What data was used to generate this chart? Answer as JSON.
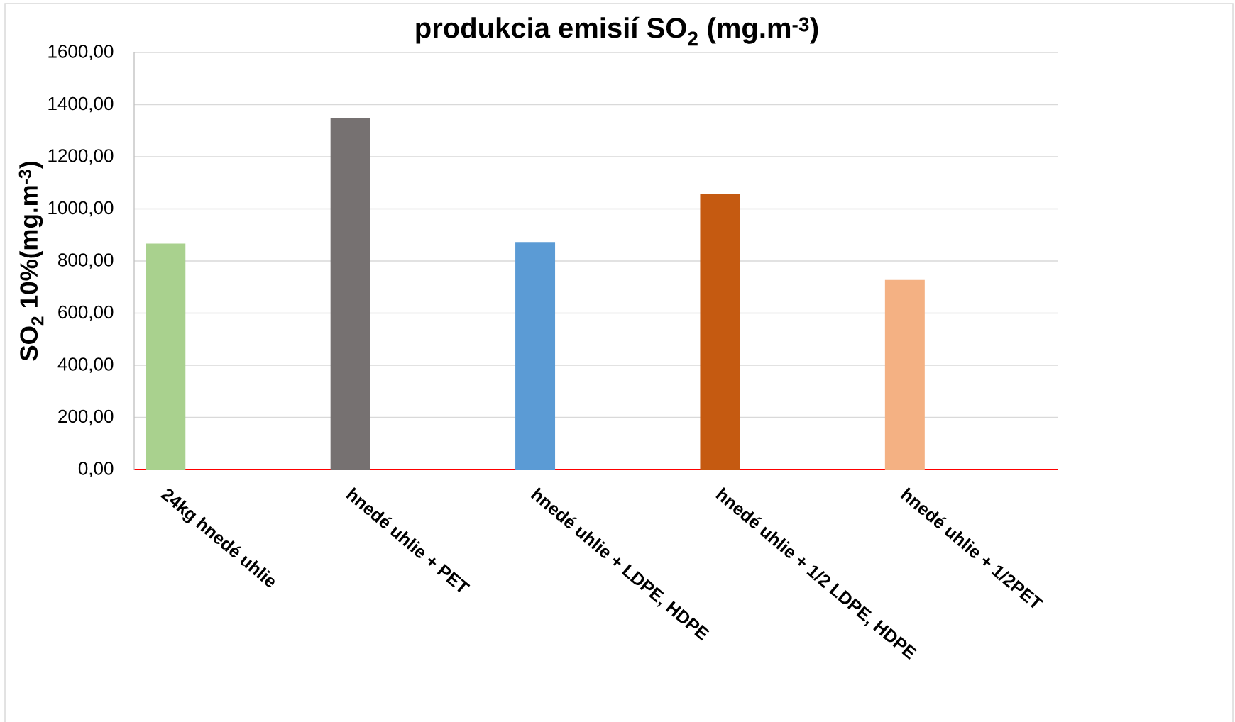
{
  "chart_data": {
    "type": "bar",
    "title": "produkcia emisií SO$_{2}$ (mg.m$^{-3}$)",
    "ylabel": "SO$_{2}$ 10%(mg.m$^{-3}$)",
    "categories": [
      "24kg hnedé uhlie",
      "hnedé uhlie + PET",
      "hnedé uhlie + LDPE, HDPE",
      "hnedé uhlie + 1/2 LDPE, HDPE",
      "hnedé uhlie + 1/2PET"
    ],
    "values": [
      867,
      1347,
      873,
      1056,
      727
    ],
    "colors": [
      "#a9d18e",
      "#767171",
      "#5b9bd5",
      "#c55a11",
      "#f4b183"
    ],
    "ylim": [
      0,
      1600
    ],
    "yticks": [
      {
        "value": 0,
        "label": "0,00"
      },
      {
        "value": 200,
        "label": "200,00"
      },
      {
        "value": 400,
        "label": "400,00"
      },
      {
        "value": 600,
        "label": "600,00"
      },
      {
        "value": 800,
        "label": "800,00"
      },
      {
        "value": 1000,
        "label": "1000,00"
      },
      {
        "value": 1200,
        "label": "1200,00"
      },
      {
        "value": 1400,
        "label": "1400,00"
      },
      {
        "value": 1600,
        "label": "1600,00"
      }
    ],
    "grid": "y"
  }
}
